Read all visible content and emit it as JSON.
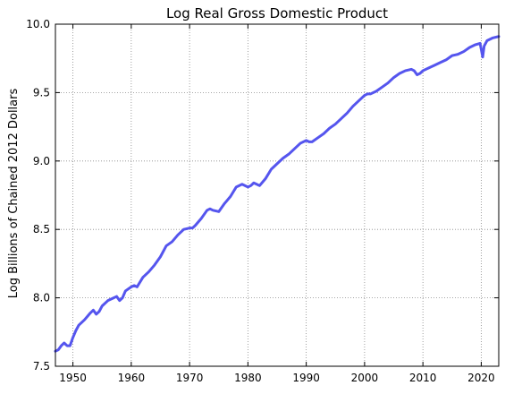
{
  "chart_data": {
    "type": "line",
    "title": "Log Real Gross Domestic Product",
    "xlabel": "",
    "ylabel": "Log Billions of Chained 2012 Dollars",
    "xlim": [
      1947,
      2023
    ],
    "ylim": [
      7.5,
      10.0
    ],
    "x_ticks": [
      1950,
      1960,
      1970,
      1980,
      1990,
      2000,
      2010,
      2020
    ],
    "y_ticks": [
      7.5,
      8.0,
      8.5,
      9.0,
      9.5,
      10.0
    ],
    "x_tick_labels": [
      "1950",
      "1960",
      "1970",
      "1980",
      "1990",
      "2000",
      "2010",
      "2020"
    ],
    "y_tick_labels": [
      "7.5",
      "8.0",
      "8.5",
      "9.0",
      "9.5",
      "10.0"
    ],
    "grid": true,
    "legend": "none",
    "series": [
      {
        "color": "#5555ee",
        "x": [
          1947.0,
          1947.5,
          1948.0,
          1948.5,
          1949.0,
          1949.5,
          1950.0,
          1950.5,
          1951.0,
          1952.0,
          1953.0,
          1953.5,
          1954.0,
          1954.5,
          1955.0,
          1956.0,
          1957.0,
          1957.5,
          1958.0,
          1958.5,
          1959.0,
          1960.0,
          1960.5,
          1961.0,
          1962.0,
          1963.0,
          1964.0,
          1965.0,
          1966.0,
          1967.0,
          1968.0,
          1969.0,
          1970.0,
          1970.5,
          1971.0,
          1972.0,
          1973.0,
          1973.5,
          1974.0,
          1975.0,
          1976.0,
          1977.0,
          1978.0,
          1979.0,
          1980.0,
          1980.5,
          1981.0,
          1981.5,
          1982.0,
          1983.0,
          1984.0,
          1985.0,
          1986.0,
          1987.0,
          1988.0,
          1989.0,
          1990.0,
          1990.5,
          1991.0,
          1992.0,
          1993.0,
          1994.0,
          1995.0,
          1996.0,
          1997.0,
          1998.0,
          1999.0,
          2000.0,
          2000.5,
          2001.0,
          2002.0,
          2003.0,
          2004.0,
          2005.0,
          2006.0,
          2007.0,
          2008.0,
          2008.5,
          2009.0,
          2009.5,
          2010.0,
          2011.0,
          2012.0,
          2013.0,
          2014.0,
          2015.0,
          2016.0,
          2017.0,
          2018.0,
          2019.0,
          2019.8,
          2020.25,
          2020.5,
          2021.0,
          2022.0,
          2023.0
        ],
        "y": [
          7.61,
          7.62,
          7.65,
          7.67,
          7.65,
          7.65,
          7.71,
          7.76,
          7.8,
          7.84,
          7.89,
          7.91,
          7.88,
          7.9,
          7.94,
          7.98,
          8.0,
          8.01,
          7.98,
          8.0,
          8.05,
          8.08,
          8.09,
          8.08,
          8.15,
          8.19,
          8.24,
          8.3,
          8.38,
          8.41,
          8.46,
          8.5,
          8.51,
          8.51,
          8.53,
          8.58,
          8.64,
          8.65,
          8.64,
          8.63,
          8.69,
          8.74,
          8.81,
          8.83,
          8.81,
          8.82,
          8.84,
          8.83,
          8.82,
          8.87,
          8.94,
          8.98,
          9.02,
          9.05,
          9.09,
          9.13,
          9.15,
          9.14,
          9.14,
          9.17,
          9.2,
          9.24,
          9.27,
          9.31,
          9.35,
          9.4,
          9.44,
          9.48,
          9.49,
          9.49,
          9.51,
          9.54,
          9.57,
          9.61,
          9.64,
          9.66,
          9.67,
          9.66,
          9.63,
          9.64,
          9.66,
          9.68,
          9.7,
          9.72,
          9.74,
          9.77,
          9.78,
          9.8,
          9.83,
          9.85,
          9.86,
          9.76,
          9.84,
          9.88,
          9.9,
          9.91
        ]
      }
    ]
  }
}
